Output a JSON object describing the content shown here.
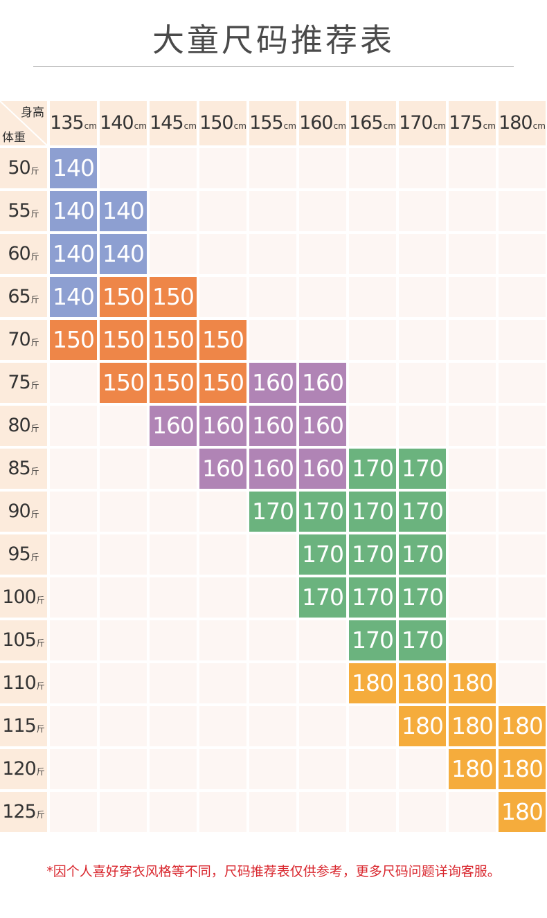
{
  "title": "大童尺码推荐表",
  "corner": {
    "height_label": "身高",
    "weight_label": "体重"
  },
  "height_unit": "cm",
  "weight_unit": "斤",
  "heights": [
    "135",
    "140",
    "145",
    "150",
    "155",
    "160",
    "165",
    "170",
    "175",
    "180"
  ],
  "weights": [
    "50",
    "55",
    "60",
    "65",
    "70",
    "75",
    "80",
    "85",
    "90",
    "95",
    "100",
    "105",
    "110",
    "115",
    "120",
    "125"
  ],
  "size_colors": {
    "140": "#8d9fd1",
    "150": "#ee8648",
    "160": "#b084b5",
    "170": "#6bb37e",
    "180": "#f5ac3c"
  },
  "recommendations": [
    [
      "140",
      "",
      "",
      "",
      "",
      "",
      "",
      "",
      "",
      ""
    ],
    [
      "140",
      "140",
      "",
      "",
      "",
      "",
      "",
      "",
      "",
      ""
    ],
    [
      "140",
      "140",
      "",
      "",
      "",
      "",
      "",
      "",
      "",
      ""
    ],
    [
      "140",
      "150",
      "150",
      "",
      "",
      "",
      "",
      "",
      "",
      ""
    ],
    [
      "150",
      "150",
      "150",
      "150",
      "",
      "",
      "",
      "",
      "",
      ""
    ],
    [
      "",
      "150",
      "150",
      "150",
      "160",
      "160",
      "",
      "",
      "",
      ""
    ],
    [
      "",
      "",
      "160",
      "160",
      "160",
      "160",
      "",
      "",
      "",
      ""
    ],
    [
      "",
      "",
      "",
      "160",
      "160",
      "160",
      "170",
      "170",
      "",
      ""
    ],
    [
      "",
      "",
      "",
      "",
      "170",
      "170",
      "170",
      "170",
      "",
      ""
    ],
    [
      "",
      "",
      "",
      "",
      "",
      "170",
      "170",
      "170",
      "",
      ""
    ],
    [
      "",
      "",
      "",
      "",
      "",
      "170",
      "170",
      "170",
      "",
      ""
    ],
    [
      "",
      "",
      "",
      "",
      "",
      "",
      "170",
      "170",
      "",
      ""
    ],
    [
      "",
      "",
      "",
      "",
      "",
      "",
      "180",
      "180",
      "180",
      ""
    ],
    [
      "",
      "",
      "",
      "",
      "",
      "",
      "",
      "180",
      "180",
      "180"
    ],
    [
      "",
      "",
      "",
      "",
      "",
      "",
      "",
      "",
      "180",
      "180"
    ],
    [
      "",
      "",
      "",
      "",
      "",
      "",
      "",
      "",
      "",
      "180"
    ]
  ],
  "note": "*因个人喜好穿衣风格等不同，尺码推荐表仅供参考，更多尺码问题详询客服。"
}
